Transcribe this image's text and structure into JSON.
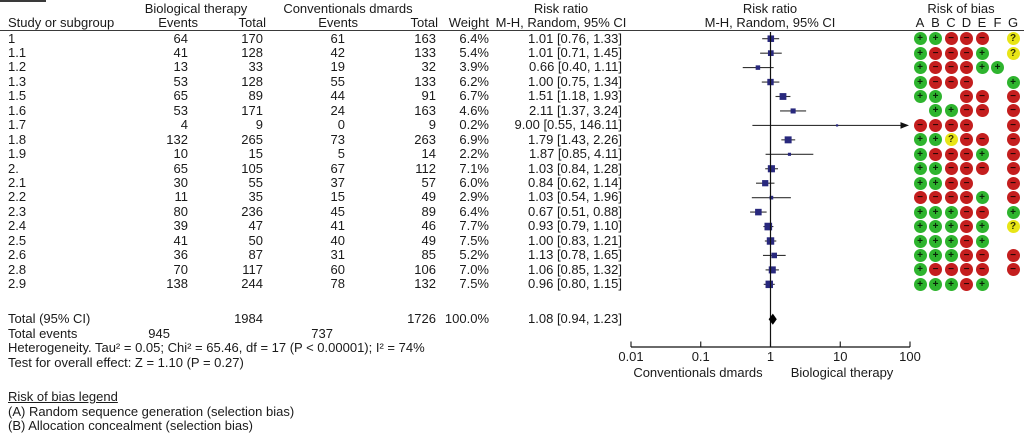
{
  "header": {
    "group1": "Biological therapy",
    "group2": "Conventionals dmards",
    "col_study": "Study or subgroup",
    "col_events": "Events",
    "col_total": "Total",
    "col_weight": "Weight",
    "rr_text_title": "Risk ratio",
    "rr_text_sub": "M-H, Random, 95% CI",
    "rr_plot_title": "Risk ratio",
    "rr_plot_sub": "M-H, Random, 95% CI",
    "rob_title": "Risk of bias",
    "rob_cols": [
      "A",
      "B",
      "C",
      "D",
      "E",
      "F",
      "G"
    ]
  },
  "chart_data": {
    "type": "forest",
    "effect_measure": "Risk ratio, M-H, Random, 95% CI",
    "studies": [
      {
        "label": "1",
        "e1": 64,
        "n1": 170,
        "e2": 61,
        "n2": 163,
        "weight": "6.4%",
        "rr": 1.01,
        "lo": 0.76,
        "hi": 1.33,
        "ci": "1.01 [0.76, 1.33]",
        "rob": [
          "+",
          "+",
          "-",
          "-",
          "-",
          "",
          "?"
        ]
      },
      {
        "label": "1.1",
        "e1": 41,
        "n1": 128,
        "e2": 42,
        "n2": 133,
        "weight": "5.4%",
        "rr": 1.01,
        "lo": 0.71,
        "hi": 1.45,
        "ci": "1.01 [0.71, 1.45]",
        "rob": [
          "+",
          "-",
          "-",
          "-",
          "+",
          "",
          "?"
        ]
      },
      {
        "label": "1.2",
        "e1": 13,
        "n1": 33,
        "e2": 19,
        "n2": 32,
        "weight": "3.9%",
        "rr": 0.66,
        "lo": 0.4,
        "hi": 1.11,
        "ci": "0.66 [0.40, 1.11]",
        "rob": [
          "+",
          "-",
          "-",
          "-",
          "+",
          "+",
          ""
        ]
      },
      {
        "label": "1.3",
        "e1": 53,
        "n1": 128,
        "e2": 55,
        "n2": 133,
        "weight": "6.2%",
        "rr": 1.0,
        "lo": 0.75,
        "hi": 1.34,
        "ci": "1.00 [0.75, 1.34]",
        "rob": [
          "+",
          "-",
          "-",
          "-",
          "",
          "",
          "+"
        ]
      },
      {
        "label": "1.5",
        "e1": 65,
        "n1": 89,
        "e2": 44,
        "n2": 91,
        "weight": "6.7%",
        "rr": 1.51,
        "lo": 1.18,
        "hi": 1.93,
        "ci": "1.51 [1.18, 1.93]",
        "rob": [
          "+",
          "+",
          "",
          "-",
          "-",
          "",
          "-"
        ]
      },
      {
        "label": "1.6",
        "e1": 53,
        "n1": 171,
        "e2": 24,
        "n2": 163,
        "weight": "4.6%",
        "rr": 2.11,
        "lo": 1.37,
        "hi": 3.24,
        "ci": "2.11 [1.37, 3.24]",
        "rob": [
          "",
          "+",
          "+",
          "-",
          "-",
          "",
          "-"
        ]
      },
      {
        "label": "1.7",
        "e1": 4,
        "n1": 9,
        "e2": 0,
        "n2": 9,
        "weight": "0.2%",
        "rr": 9.0,
        "lo": 0.55,
        "hi": 146.11,
        "ci": "9.00 [0.55, 146.11]",
        "rob": [
          "-",
          "-",
          "-",
          "-",
          "",
          "",
          "-"
        ]
      },
      {
        "label": "1.8",
        "e1": 132,
        "n1": 265,
        "e2": 73,
        "n2": 263,
        "weight": "6.9%",
        "rr": 1.79,
        "lo": 1.43,
        "hi": 2.26,
        "ci": "1.79 [1.43, 2.26]",
        "rob": [
          "+",
          "+",
          "?",
          "-",
          "-",
          "",
          "-"
        ]
      },
      {
        "label": "1.9",
        "e1": 10,
        "n1": 15,
        "e2": 5,
        "n2": 14,
        "weight": "2.2%",
        "rr": 1.87,
        "lo": 0.85,
        "hi": 4.11,
        "ci": "1.87 [0.85, 4.11]",
        "rob": [
          "+",
          "-",
          "-",
          "-",
          "+",
          "",
          "-"
        ]
      },
      {
        "label": "2.",
        "e1": 65,
        "n1": 105,
        "e2": 67,
        "n2": 112,
        "weight": "7.1%",
        "rr": 1.03,
        "lo": 0.84,
        "hi": 1.28,
        "ci": "1.03 [0.84, 1.28]",
        "rob": [
          "+",
          "+",
          "-",
          "-",
          "-",
          "",
          "-"
        ]
      },
      {
        "label": "2.1",
        "e1": 30,
        "n1": 55,
        "e2": 37,
        "n2": 57,
        "weight": "6.0%",
        "rr": 0.84,
        "lo": 0.62,
        "hi": 1.14,
        "ci": "0.84 [0.62, 1.14]",
        "rob": [
          "+",
          "+",
          "-",
          "-",
          "",
          "",
          "-"
        ]
      },
      {
        "label": "2.2",
        "e1": 11,
        "n1": 35,
        "e2": 15,
        "n2": 49,
        "weight": "2.9%",
        "rr": 1.03,
        "lo": 0.54,
        "hi": 1.96,
        "ci": "1.03 [0.54, 1.96]",
        "rob": [
          "-",
          "-",
          "-",
          "-",
          "+",
          "",
          "-"
        ]
      },
      {
        "label": "2.3",
        "e1": 80,
        "n1": 236,
        "e2": 45,
        "n2": 89,
        "weight": "6.4%",
        "rr": 0.67,
        "lo": 0.51,
        "hi": 0.88,
        "ci": "0.67 [0.51, 0.88]",
        "rob": [
          "+",
          "+",
          "+",
          "-",
          "-",
          "",
          "+"
        ]
      },
      {
        "label": "2.4",
        "e1": 39,
        "n1": 47,
        "e2": 41,
        "n2": 46,
        "weight": "7.7%",
        "rr": 0.93,
        "lo": 0.79,
        "hi": 1.1,
        "ci": "0.93 [0.79, 1.10]",
        "rob": [
          "+",
          "+",
          "+",
          "-",
          "+",
          "",
          "?"
        ]
      },
      {
        "label": "2.5",
        "e1": 41,
        "n1": 50,
        "e2": 40,
        "n2": 49,
        "weight": "7.5%",
        "rr": 1.0,
        "lo": 0.83,
        "hi": 1.21,
        "ci": "1.00 [0.83, 1.21]",
        "rob": [
          "+",
          "+",
          "+",
          "-",
          "+",
          "",
          ""
        ]
      },
      {
        "label": "2.6",
        "e1": 36,
        "n1": 87,
        "e2": 31,
        "n2": 85,
        "weight": "5.2%",
        "rr": 1.13,
        "lo": 0.78,
        "hi": 1.65,
        "ci": "1.13 [0.78, 1.65]",
        "rob": [
          "+",
          "+",
          "+",
          "-",
          "-",
          "",
          "-"
        ]
      },
      {
        "label": "2.8",
        "e1": 70,
        "n1": 117,
        "e2": 60,
        "n2": 106,
        "weight": "7.0%",
        "rr": 1.06,
        "lo": 0.85,
        "hi": 1.32,
        "ci": "1.06 [0.85, 1.32]",
        "rob": [
          "+",
          "-",
          "-",
          "-",
          "-",
          "",
          "-"
        ]
      },
      {
        "label": "2.9",
        "e1": 138,
        "n1": 244,
        "e2": 78,
        "n2": 132,
        "weight": "7.5%",
        "rr": 0.96,
        "lo": 0.8,
        "hi": 1.15,
        "ci": "0.96 [0.80, 1.15]",
        "rob": [
          "+",
          "+",
          "+",
          "-",
          "+",
          "",
          ""
        ]
      }
    ],
    "total": {
      "label": "Total (95% CI)",
      "n1": 1984,
      "n2": 1726,
      "weight": "100.0%",
      "rr": 1.08,
      "lo": 0.94,
      "hi": 1.23,
      "ci": "1.08 [0.94, 1.23]"
    },
    "total_events": {
      "label": "Total events",
      "e1": 945,
      "e2": 737
    },
    "axis": {
      "scale": "log",
      "ticks": [
        "0.01",
        "0.1",
        "1",
        "10",
        "100"
      ],
      "min": 0.01,
      "max": 100,
      "left_label": "Conventionals dmards",
      "right_label": "Biological therapy"
    }
  },
  "footer": {
    "heterogeneity": "Heterogeneity. Tau² = 0.05; Chi² = 65.46, df = 17 (P < 0.00001); I² = 74%",
    "overall_effect": "Test for overall effect: Z = 1.10 (P = 0.27)"
  },
  "legend": {
    "title": "Risk of bias legend",
    "items": [
      "(A) Random sequence generation (selection bias)",
      "(B) Allocation concealment (selection bias)"
    ]
  },
  "colors": {
    "plus": "#2eb42e",
    "minus": "#c41e1e",
    "question": "#e8e516",
    "marker": "#28287d",
    "ci_line": "#333333",
    "diamond": "#000000"
  }
}
